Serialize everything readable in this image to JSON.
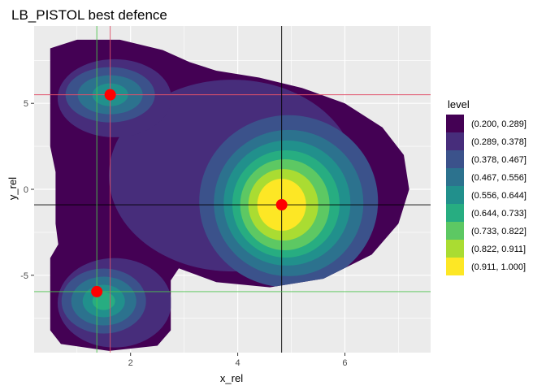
{
  "chart_data": {
    "type": "contour",
    "title": "LB_PISTOL best defence",
    "xlabel": "x_rel",
    "ylabel": "y_rel",
    "xlim": [
      0.2,
      7.6
    ],
    "ylim": [
      -9.5,
      9.5
    ],
    "x_ticks": [
      2,
      4,
      6
    ],
    "x_tick_labels": [
      "2",
      "4",
      "6"
    ],
    "y_ticks": [
      -5,
      0,
      5
    ],
    "y_tick_labels": [
      "-5",
      "0",
      "5"
    ],
    "grid": true,
    "legend": {
      "title": "level",
      "placement": "right",
      "entries": [
        {
          "label": "(0.200, 0.289]",
          "color": "#440154"
        },
        {
          "label": "(0.289, 0.378]",
          "color": "#472D7B"
        },
        {
          "label": "(0.378, 0.467]",
          "color": "#3B528B"
        },
        {
          "label": "(0.467, 0.556]",
          "color": "#2C728E"
        },
        {
          "label": "(0.556, 0.644]",
          "color": "#21908C"
        },
        {
          "label": "(0.644, 0.733]",
          "color": "#27AD81"
        },
        {
          "label": "(0.733, 0.822]",
          "color": "#5DC863"
        },
        {
          "label": "(0.822, 0.911]",
          "color": "#AADC32"
        },
        {
          "label": "(0.911, 1.000]",
          "color": "#FDE725"
        }
      ]
    },
    "points": [
      {
        "x": 1.62,
        "y": 5.5
      },
      {
        "x": 4.82,
        "y": -0.9
      },
      {
        "x": 1.37,
        "y": -5.95
      }
    ],
    "reference_lines": [
      {
        "orientation": "vertical",
        "x": 1.62,
        "color": "#E0506A"
      },
      {
        "orientation": "horizontal",
        "y": 5.5,
        "color": "#E0506A"
      },
      {
        "orientation": "vertical",
        "x": 4.82,
        "color": "#000000"
      },
      {
        "orientation": "horizontal",
        "y": -0.9,
        "color": "#000000"
      },
      {
        "orientation": "vertical",
        "x": 1.37,
        "color": "#4CC24C"
      },
      {
        "orientation": "horizontal",
        "y": -5.95,
        "color": "#4CC24C"
      }
    ],
    "point_color": "#FF0000",
    "panel_background": "#EBEBEB"
  }
}
